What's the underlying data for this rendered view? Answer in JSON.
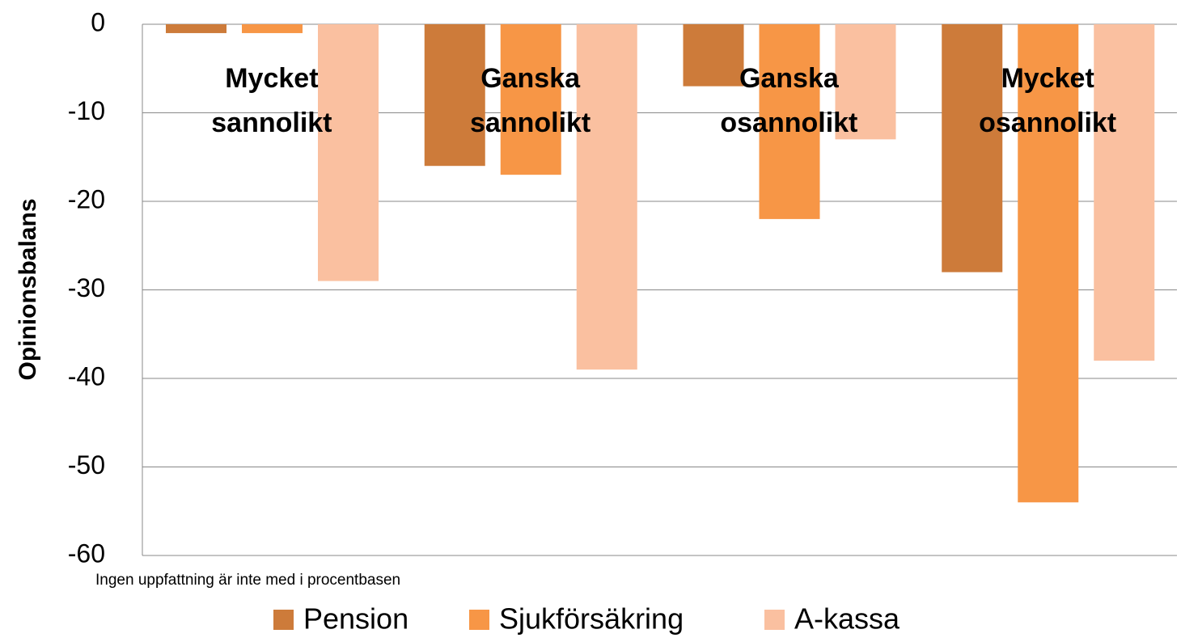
{
  "chart_data": {
    "type": "bar",
    "categories": [
      "Mycket sannolikt",
      "Ganska sannolikt",
      "Ganska osannolikt",
      "Mycket osannolikt"
    ],
    "series": [
      {
        "name": "Pension",
        "color": "#cd7b3a",
        "values": [
          -1,
          -16,
          -7,
          -28
        ]
      },
      {
        "name": "Sjukförsäkring",
        "color": "#f79646",
        "values": [
          -1,
          -17,
          -22,
          -54
        ]
      },
      {
        "name": "A-kassa",
        "color": "#fac0a0",
        "values": [
          -29,
          -39,
          -13,
          -38
        ]
      }
    ],
    "ylabel": "Opinionsbalans",
    "note": "Ingen uppfattning är inte med i procentbasen",
    "ylim": [
      -60,
      0
    ],
    "yticks": [
      0,
      -10,
      -20,
      -30,
      -40,
      -50,
      -60
    ],
    "grid": true,
    "legend": "bottom"
  }
}
